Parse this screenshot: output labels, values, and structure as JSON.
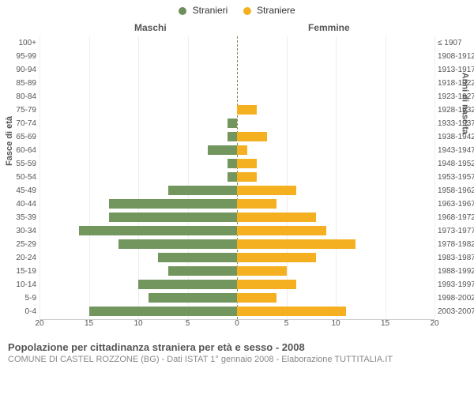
{
  "legend": {
    "male": {
      "label": "Stranieri",
      "color": "#6d8f5a"
    },
    "female": {
      "label": "Straniere",
      "color": "#f5b021"
    }
  },
  "headers": {
    "male": "Maschi",
    "female": "Femmine"
  },
  "axis_titles": {
    "left": "Fasce di età",
    "right": "Anni di nascita"
  },
  "chart": {
    "type": "population-pyramid",
    "x_max": 20,
    "x_ticks": [
      20,
      15,
      10,
      5,
      0,
      5,
      10,
      15,
      20
    ],
    "grid_color": "#eeeeee",
    "centerline_color": "#888844",
    "bar_color_male": "#73965f",
    "bar_color_female": "#f5b021",
    "rows": [
      {
        "age": "100+",
        "birth": "≤ 1907",
        "m": 0,
        "f": 0
      },
      {
        "age": "95-99",
        "birth": "1908-1912",
        "m": 0,
        "f": 0
      },
      {
        "age": "90-94",
        "birth": "1913-1917",
        "m": 0,
        "f": 0
      },
      {
        "age": "85-89",
        "birth": "1918-1922",
        "m": 0,
        "f": 0
      },
      {
        "age": "80-84",
        "birth": "1923-1927",
        "m": 0,
        "f": 0
      },
      {
        "age": "75-79",
        "birth": "1928-1932",
        "m": 0,
        "f": 2
      },
      {
        "age": "70-74",
        "birth": "1933-1937",
        "m": 1,
        "f": 0
      },
      {
        "age": "65-69",
        "birth": "1938-1942",
        "m": 1,
        "f": 3
      },
      {
        "age": "60-64",
        "birth": "1943-1947",
        "m": 3,
        "f": 1
      },
      {
        "age": "55-59",
        "birth": "1948-1952",
        "m": 1,
        "f": 2
      },
      {
        "age": "50-54",
        "birth": "1953-1957",
        "m": 1,
        "f": 2
      },
      {
        "age": "45-49",
        "birth": "1958-1962",
        "m": 7,
        "f": 6
      },
      {
        "age": "40-44",
        "birth": "1963-1967",
        "m": 13,
        "f": 4
      },
      {
        "age": "35-39",
        "birth": "1968-1972",
        "m": 13,
        "f": 8
      },
      {
        "age": "30-34",
        "birth": "1973-1977",
        "m": 16,
        "f": 9
      },
      {
        "age": "25-29",
        "birth": "1978-1982",
        "m": 12,
        "f": 12
      },
      {
        "age": "20-24",
        "birth": "1983-1987",
        "m": 8,
        "f": 8
      },
      {
        "age": "15-19",
        "birth": "1988-1992",
        "m": 7,
        "f": 5
      },
      {
        "age": "10-14",
        "birth": "1993-1997",
        "m": 10,
        "f": 6
      },
      {
        "age": "5-9",
        "birth": "1998-2002",
        "m": 9,
        "f": 4
      },
      {
        "age": "0-4",
        "birth": "2003-2007",
        "m": 15,
        "f": 11
      }
    ]
  },
  "footer": {
    "title": "Popolazione per cittadinanza straniera per età e sesso - 2008",
    "subtitle": "COMUNE DI CASTEL ROZZONE (BG) - Dati ISTAT 1° gennaio 2008 - Elaborazione TUTTITALIA.IT"
  }
}
